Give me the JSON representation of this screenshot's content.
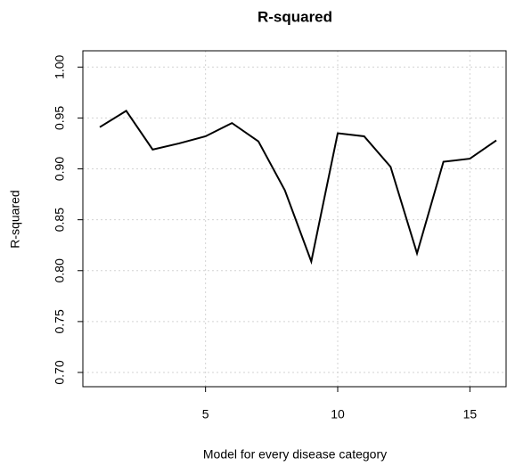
{
  "chart_data": {
    "type": "line",
    "title": "R-squared",
    "xlabel": "Model for every disease category",
    "ylabel": "R-squared",
    "x": [
      1,
      2,
      3,
      4,
      5,
      6,
      7,
      8,
      9,
      10,
      11,
      12,
      13,
      14,
      15,
      16
    ],
    "series": [
      {
        "name": "R-squared",
        "color": "#000000",
        "values": [
          0.941,
          0.957,
          0.919,
          0.925,
          0.932,
          0.945,
          0.927,
          0.879,
          0.809,
          0.935,
          0.932,
          0.902,
          0.817,
          0.907,
          0.91,
          0.928
        ]
      }
    ],
    "xlim": [
      0.36,
      16.37
    ],
    "ylim": [
      0.686,
      1.016
    ],
    "xticks": [
      5,
      10,
      15
    ],
    "yticks": [
      {
        "value": 0.7,
        "label": "0.70"
      },
      {
        "value": 0.75,
        "label": "0.75"
      },
      {
        "value": 0.8,
        "label": "0.80"
      },
      {
        "value": 0.85,
        "label": "0.85"
      },
      {
        "value": 0.9,
        "label": "0.90"
      },
      {
        "value": 0.95,
        "label": "0.95"
      },
      {
        "value": 1.0,
        "label": "1.00"
      }
    ],
    "grid": true
  }
}
